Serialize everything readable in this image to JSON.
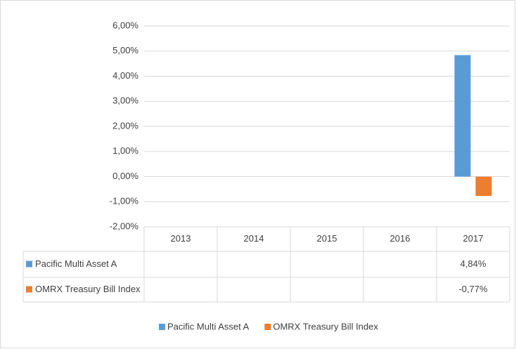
{
  "chart_data": {
    "type": "bar",
    "categories": [
      "2013",
      "2014",
      "2015",
      "2016",
      "2017"
    ],
    "series": [
      {
        "name": "Pacific Multi Asset A",
        "color": "#5b9bd5",
        "values": [
          null,
          null,
          null,
          null,
          4.84
        ],
        "value_labels": [
          null,
          null,
          null,
          null,
          "4,84%"
        ]
      },
      {
        "name": "OMRX Treasury Bill Index",
        "color": "#ed7d31",
        "values": [
          null,
          null,
          null,
          null,
          -0.77
        ],
        "value_labels": [
          null,
          null,
          null,
          null,
          "-0,77%"
        ]
      }
    ],
    "ylim": [
      -2,
      6
    ],
    "yticks": [
      {
        "value": -2,
        "label": "-2,00%"
      },
      {
        "value": -1,
        "label": "-1,00%"
      },
      {
        "value": 0,
        "label": "0,00%"
      },
      {
        "value": 1,
        "label": "1,00%"
      },
      {
        "value": 2,
        "label": "2,00%"
      },
      {
        "value": 3,
        "label": "3,00%"
      },
      {
        "value": 4,
        "label": "4,00%"
      },
      {
        "value": 5,
        "label": "5,00%"
      },
      {
        "value": 6,
        "label": "6,00%"
      }
    ],
    "grid": true,
    "legend": "bottom"
  }
}
